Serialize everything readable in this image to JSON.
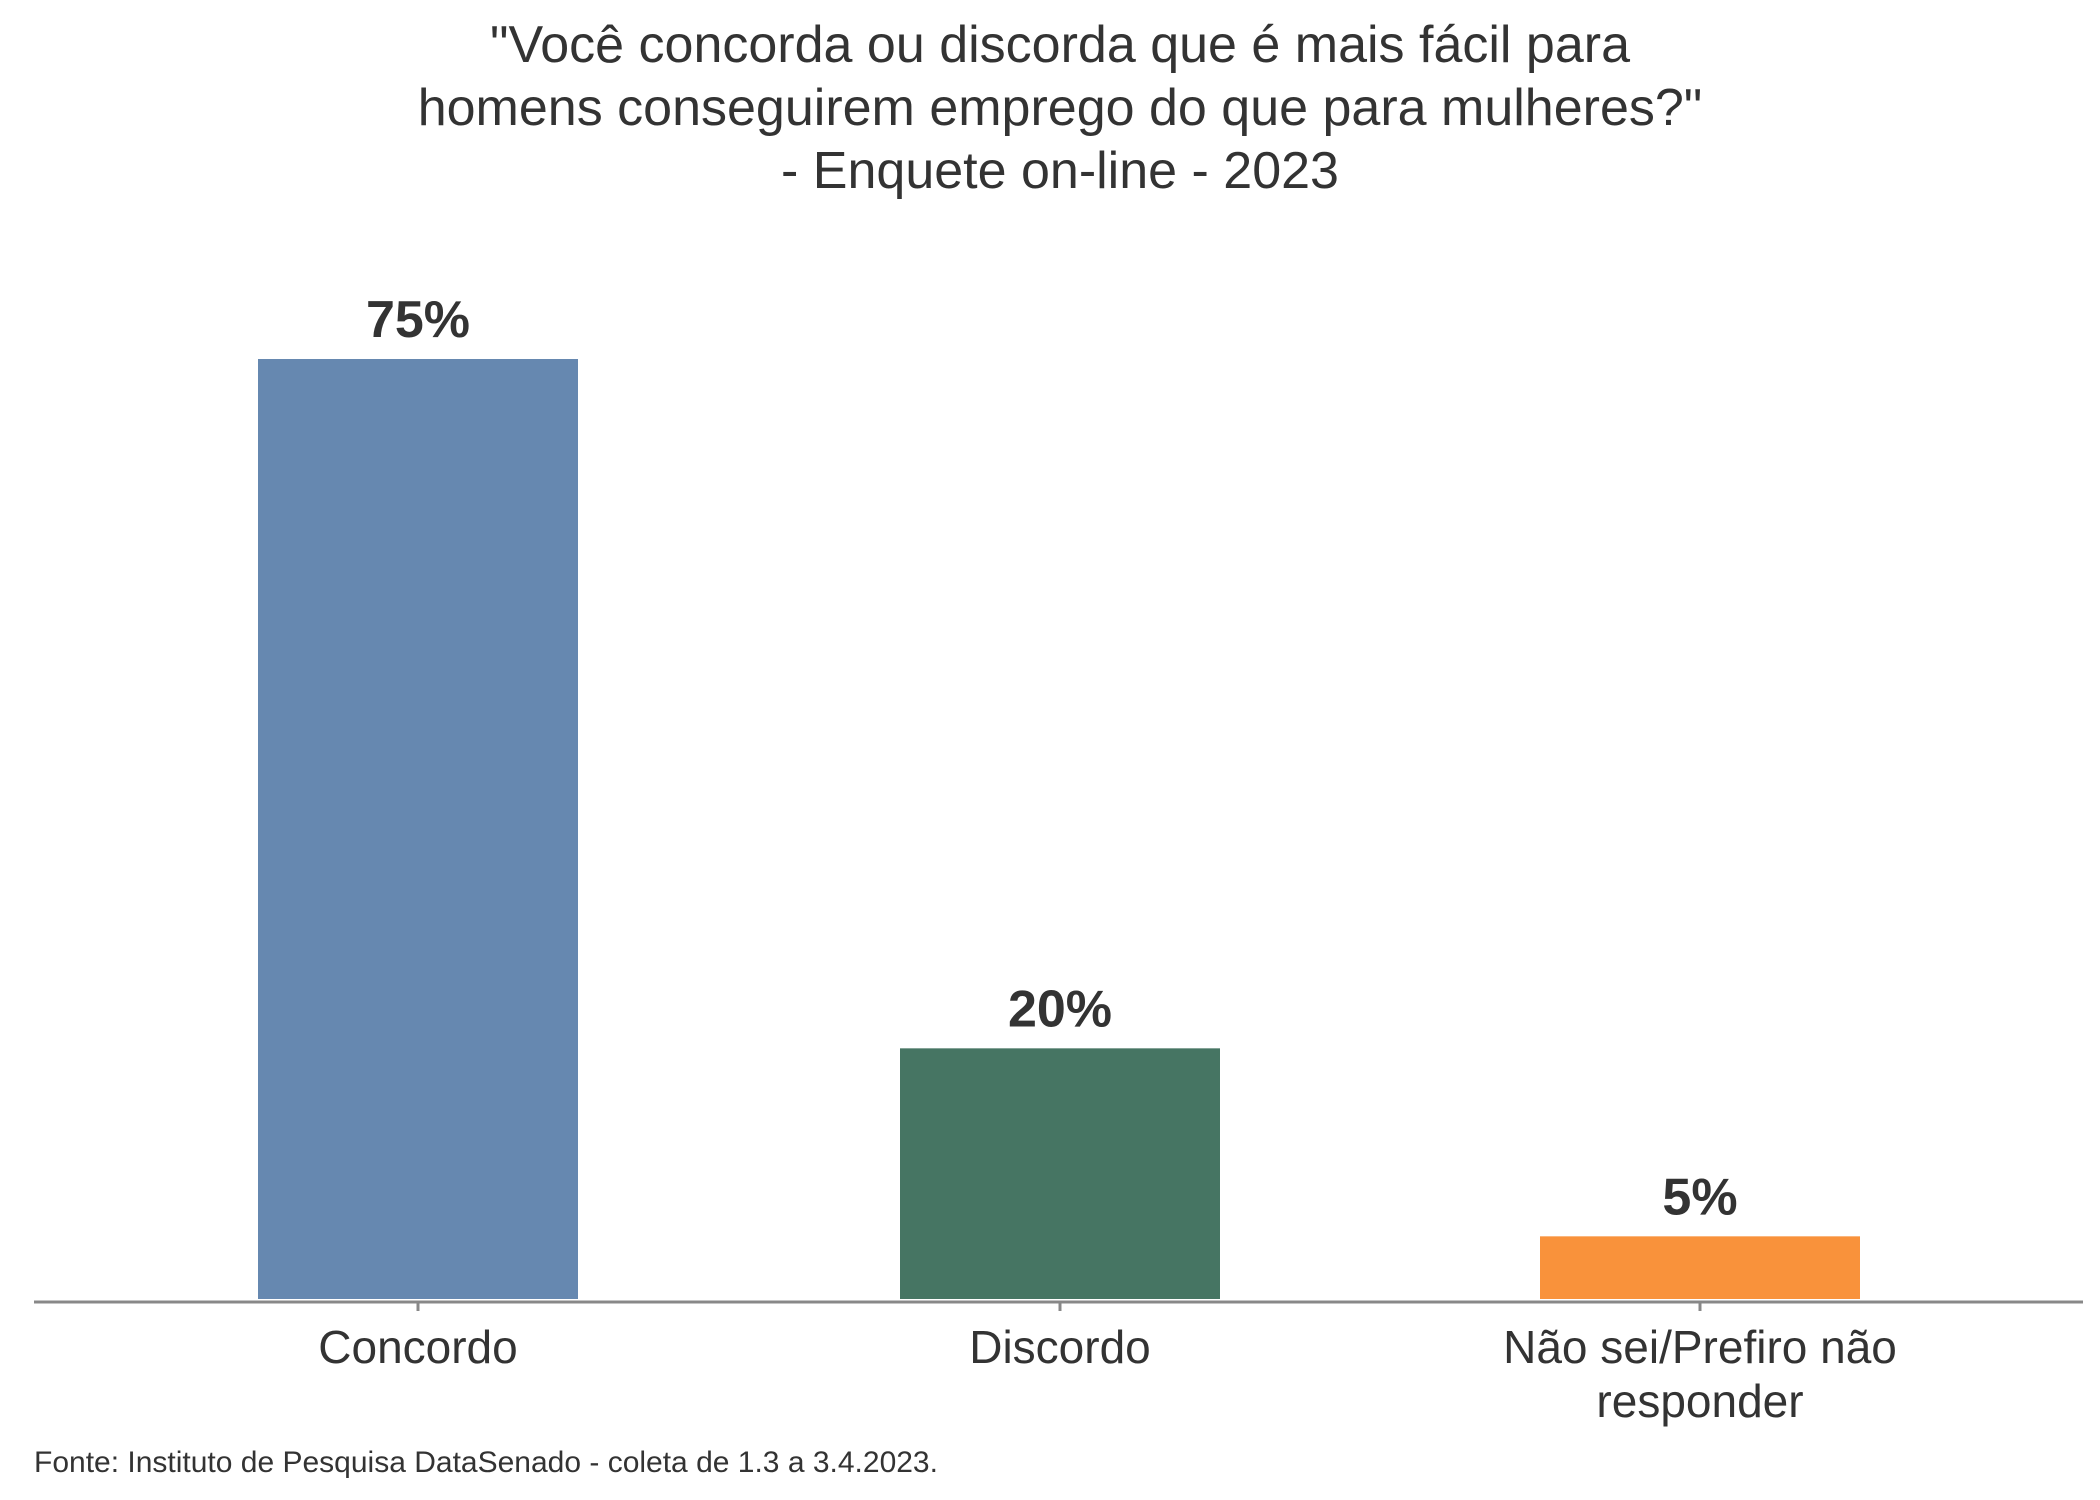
{
  "chart_data": {
    "type": "bar",
    "title": "\"Você concorda ou discorda que é mais fácil para\nhomens conseguirem emprego do que para mulheres?\"\n- Enquete on-line - 2023",
    "categories": [
      "Concordo",
      "Discordo",
      "Não sei/Prefiro não responder"
    ],
    "values": [
      75,
      20,
      5
    ],
    "value_labels": [
      "75%",
      "20%",
      "5%"
    ],
    "colors": [
      "#6688b0",
      "#467563",
      "#f9923b"
    ],
    "source": "Fonte: Instituto de Pesquisa DataSenado - coleta de 1.3 a 3.4.2023."
  }
}
